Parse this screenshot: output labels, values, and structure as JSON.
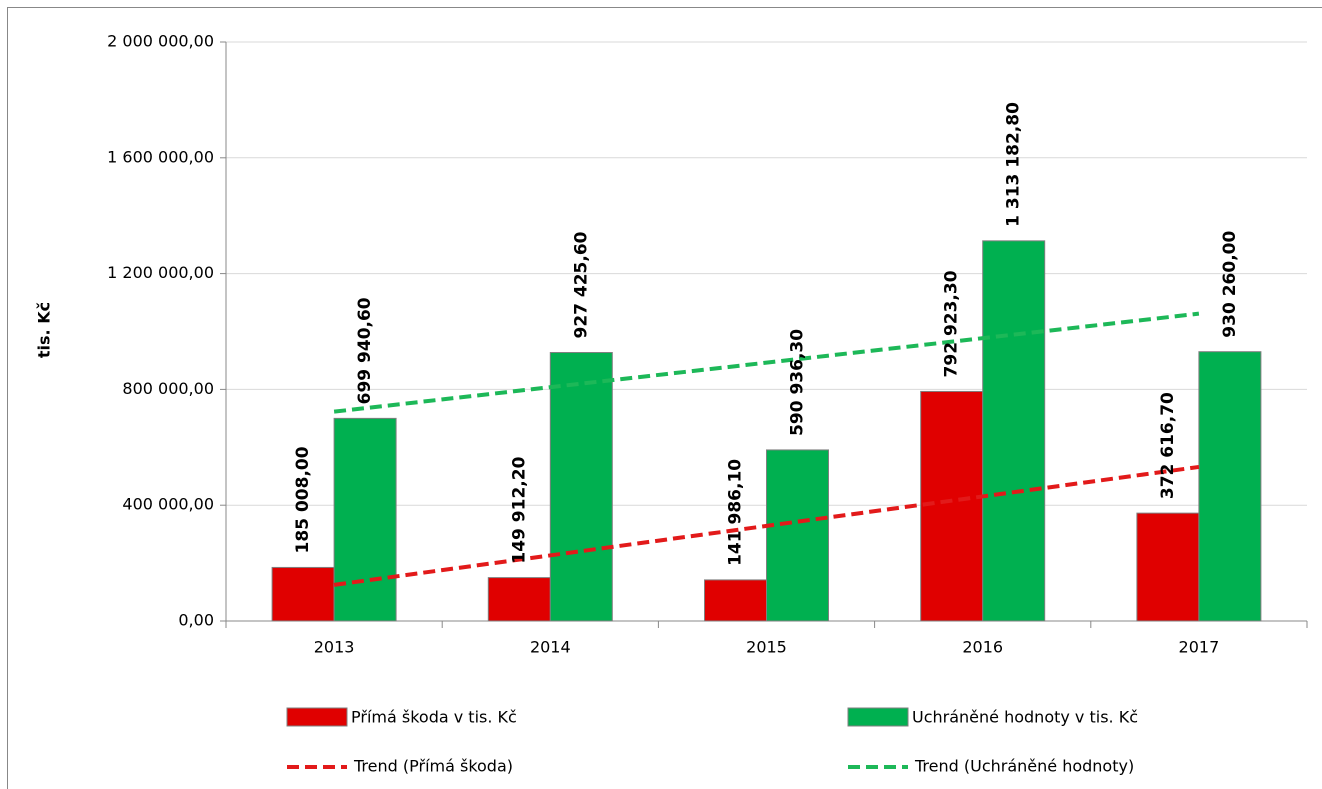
{
  "chart_data": {
    "type": "bar",
    "ylabel": "tis. Kč",
    "categories": [
      "2013",
      "2014",
      "2015",
      "2016",
      "2017"
    ],
    "series": [
      {
        "name": "Přímá škoda v tis. Kč",
        "color": "#e00000",
        "values": [
          185008.0,
          149912.2,
          141986.1,
          792923.3,
          372616.7
        ],
        "value_labels": [
          "185 008,00",
          "149 912,20",
          "141 986,10",
          "792 923,30",
          "372 616,70"
        ],
        "trend_name": "Trend (Přímá škoda)",
        "trend_color": "#e21a1a"
      },
      {
        "name": "Uchráněné hodnoty v tis. Kč",
        "color": "#00b050",
        "values": [
          699940.6,
          927425.6,
          590936.3,
          1313182.8,
          930260.0
        ],
        "value_labels": [
          "699 940,60",
          "927 425,60",
          "590 936,30",
          "1 313 182,80",
          "930 260,00"
        ],
        "trend_name": "Trend (Uchráněné hodnoty)",
        "trend_color": "#1db858"
      }
    ],
    "ylim": [
      0,
      2000000
    ],
    "yticks": [
      {
        "value": 0,
        "label": "0,00"
      },
      {
        "value": 400000,
        "label": "400 000,00"
      },
      {
        "value": 800000,
        "label": "800 000,00"
      },
      {
        "value": 1200000,
        "label": "1 200 000,00"
      },
      {
        "value": 1600000,
        "label": "1 600 000,00"
      },
      {
        "value": 2000000,
        "label": "2 000 000,00"
      }
    ],
    "grid": true,
    "legend": "bottom"
  }
}
